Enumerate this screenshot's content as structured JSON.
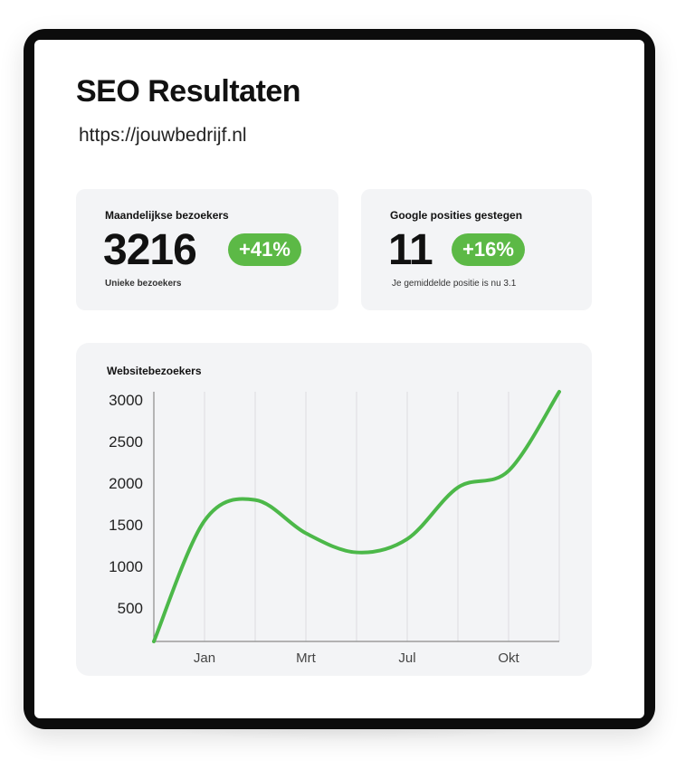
{
  "header": {
    "title": "SEO Resultaten",
    "url": "https://jouwbedrijf.nl"
  },
  "stats": [
    {
      "label": "Maandelijkse bezoekers",
      "value": "3216",
      "change": "+41%",
      "caption": "Unieke bezoekers"
    },
    {
      "label": "Google posities gestegen",
      "value": "11",
      "change": "+16%",
      "caption": "Je gemiddelde positie is nu 3.1"
    }
  ],
  "colors": {
    "accent": "#5cb946",
    "card_bg": "#f3f4f6",
    "device_frame": "#0c0c0c"
  },
  "chart_data": {
    "type": "line",
    "title": "Websitebezoekers",
    "xlabel": "",
    "ylabel": "",
    "x_tick_labels": [
      "Jan",
      "Mrt",
      "Jul",
      "Okt"
    ],
    "y_tick_labels": [
      "500",
      "1000",
      "1500",
      "2000",
      "2500",
      "3000"
    ],
    "ylim": [
      100,
      3100
    ],
    "grid": "vertical",
    "series": [
      {
        "color": "#4cb849",
        "values": [
          100,
          1550,
          1800,
          1400,
          1170,
          1330,
          1950,
          2150,
          3100
        ]
      }
    ]
  }
}
